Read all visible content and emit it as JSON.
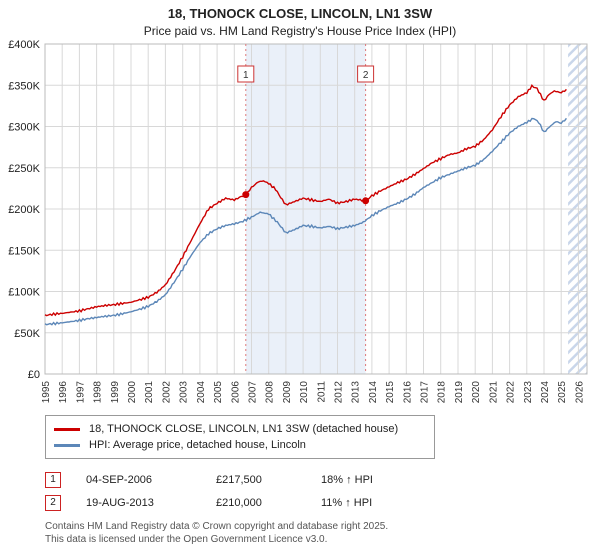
{
  "title": "18, THONOCK CLOSE, LINCOLN, LN1 3SW",
  "subtitle": "Price paid vs. HM Land Registry's House Price Index (HPI)",
  "chart_data": {
    "type": "line",
    "xlim": [
      1995,
      2026.5
    ],
    "ylim": [
      0,
      400000
    ],
    "grid": true,
    "x_ticks": [
      1995,
      1996,
      1997,
      1998,
      1999,
      2000,
      2001,
      2002,
      2003,
      2004,
      2005,
      2006,
      2007,
      2008,
      2009,
      2010,
      2011,
      2012,
      2013,
      2014,
      2015,
      2016,
      2017,
      2018,
      2019,
      2020,
      2021,
      2022,
      2023,
      2024,
      2025,
      2026
    ],
    "y_ticks": [
      {
        "value": 0,
        "label": "£0"
      },
      {
        "value": 50000,
        "label": "£50K"
      },
      {
        "value": 100000,
        "label": "£100K"
      },
      {
        "value": 150000,
        "label": "£150K"
      },
      {
        "value": 200000,
        "label": "£200K"
      },
      {
        "value": 250000,
        "label": "£250K"
      },
      {
        "value": 300000,
        "label": "£300K"
      },
      {
        "value": 350000,
        "label": "£350K"
      },
      {
        "value": 400000,
        "label": "£400K"
      }
    ],
    "shaded_region": {
      "from": 2006.67,
      "to": 2013.63,
      "color": "#eaf0f9"
    },
    "future_hatch_from": 2025.4,
    "marker_line_color": "#dd7777",
    "grid_color": "#d8d8d8",
    "series": [
      {
        "name": "18, THONOCK CLOSE, LINCOLN, LN1 3SW (detached house)",
        "color": "#cc0000",
        "points": [
          [
            1995,
            71000
          ],
          [
            1995.5,
            72500
          ],
          [
            1996,
            73500
          ],
          [
            1996.5,
            75000
          ],
          [
            1997,
            76500
          ],
          [
            1997.5,
            79000
          ],
          [
            1998,
            81500
          ],
          [
            1998.5,
            83000
          ],
          [
            1999,
            84000
          ],
          [
            1999.5,
            85500
          ],
          [
            2000,
            87000
          ],
          [
            2000.5,
            90000
          ],
          [
            2001,
            93000
          ],
          [
            2001.5,
            99000
          ],
          [
            2002,
            108000
          ],
          [
            2002.5,
            124000
          ],
          [
            2003,
            142000
          ],
          [
            2003.5,
            162000
          ],
          [
            2004,
            182000
          ],
          [
            2004.5,
            200000
          ],
          [
            2005,
            207000
          ],
          [
            2005.5,
            213000
          ],
          [
            2006,
            211000
          ],
          [
            2006.5,
            216000
          ],
          [
            2006.67,
            217500
          ],
          [
            2007,
            226000
          ],
          [
            2007.4,
            233000
          ],
          [
            2007.7,
            234000
          ],
          [
            2008,
            231000
          ],
          [
            2008.4,
            224000
          ],
          [
            2008.7,
            214000
          ],
          [
            2009,
            205000
          ],
          [
            2009.5,
            209000
          ],
          [
            2010,
            213000
          ],
          [
            2010.5,
            211000
          ],
          [
            2011,
            209000
          ],
          [
            2011.5,
            212000
          ],
          [
            2012,
            207000
          ],
          [
            2012.5,
            209000
          ],
          [
            2013,
            212000
          ],
          [
            2013.63,
            210000
          ],
          [
            2014,
            216000
          ],
          [
            2014.5,
            222000
          ],
          [
            2015,
            227000
          ],
          [
            2015.5,
            232000
          ],
          [
            2016,
            236000
          ],
          [
            2016.5,
            242000
          ],
          [
            2017,
            249000
          ],
          [
            2017.5,
            256000
          ],
          [
            2018,
            261000
          ],
          [
            2018.5,
            266000
          ],
          [
            2019,
            268000
          ],
          [
            2019.5,
            273000
          ],
          [
            2020,
            276000
          ],
          [
            2020.5,
            284000
          ],
          [
            2021,
            296000
          ],
          [
            2021.5,
            312000
          ],
          [
            2022,
            326000
          ],
          [
            2022.5,
            336000
          ],
          [
            2023,
            341000
          ],
          [
            2023.3,
            349000
          ],
          [
            2023.6,
            346000
          ],
          [
            2024,
            331000
          ],
          [
            2024.3,
            339000
          ],
          [
            2024.6,
            343000
          ],
          [
            2025,
            341000
          ],
          [
            2025.3,
            345000
          ]
        ]
      },
      {
        "name": "HPI: Average price, detached house, Lincoln",
        "color": "#5c87b8",
        "points": [
          [
            1995,
            60000
          ],
          [
            1995.5,
            61000
          ],
          [
            1996,
            62000
          ],
          [
            1996.5,
            63500
          ],
          [
            1997,
            65000
          ],
          [
            1997.5,
            67000
          ],
          [
            1998,
            68500
          ],
          [
            1998.5,
            70000
          ],
          [
            1999,
            71000
          ],
          [
            1999.5,
            73000
          ],
          [
            2000,
            75500
          ],
          [
            2000.5,
            78500
          ],
          [
            2001,
            82000
          ],
          [
            2001.5,
            88000
          ],
          [
            2002,
            96000
          ],
          [
            2002.5,
            111000
          ],
          [
            2003,
            127000
          ],
          [
            2003.5,
            144000
          ],
          [
            2004,
            159000
          ],
          [
            2004.5,
            170000
          ],
          [
            2005,
            176000
          ],
          [
            2005.5,
            180000
          ],
          [
            2006,
            182000
          ],
          [
            2006.5,
            185000
          ],
          [
            2007,
            190000
          ],
          [
            2007.5,
            196000
          ],
          [
            2008,
            194000
          ],
          [
            2008.5,
            184000
          ],
          [
            2009,
            171000
          ],
          [
            2009.5,
            175000
          ],
          [
            2010,
            180000
          ],
          [
            2010.5,
            179000
          ],
          [
            2011,
            177000
          ],
          [
            2011.5,
            179000
          ],
          [
            2012,
            176000
          ],
          [
            2012.5,
            178000
          ],
          [
            2013,
            180000
          ],
          [
            2013.5,
            184000
          ],
          [
            2014,
            192000
          ],
          [
            2014.5,
            198000
          ],
          [
            2015,
            203000
          ],
          [
            2015.5,
            207000
          ],
          [
            2016,
            212000
          ],
          [
            2016.5,
            218000
          ],
          [
            2017,
            226000
          ],
          [
            2017.5,
            232000
          ],
          [
            2018,
            238000
          ],
          [
            2018.5,
            242000
          ],
          [
            2019,
            246000
          ],
          [
            2019.5,
            250000
          ],
          [
            2020,
            253000
          ],
          [
            2020.5,
            260000
          ],
          [
            2021,
            270000
          ],
          [
            2021.5,
            281000
          ],
          [
            2022,
            292000
          ],
          [
            2022.5,
            300000
          ],
          [
            2023,
            305000
          ],
          [
            2023.4,
            310000
          ],
          [
            2023.7,
            305000
          ],
          [
            2024,
            293000
          ],
          [
            2024.4,
            301000
          ],
          [
            2024.7,
            306000
          ],
          [
            2025,
            304000
          ],
          [
            2025.3,
            310000
          ]
        ]
      }
    ],
    "sale_markers": [
      {
        "label": "1",
        "x": 2006.67,
        "price": 217500
      },
      {
        "label": "2",
        "x": 2013.63,
        "price": 210000
      }
    ]
  },
  "legend": [
    {
      "label": "18, THONOCK CLOSE, LINCOLN, LN1 3SW (detached house)",
      "color": "#cc0000"
    },
    {
      "label": "HPI: Average price, detached house, Lincoln",
      "color": "#5c87b8"
    }
  ],
  "transactions": [
    {
      "num": "1",
      "date": "04-SEP-2006",
      "price": "£217,500",
      "hpi": "18% ↑ HPI"
    },
    {
      "num": "2",
      "date": "19-AUG-2013",
      "price": "£210,000",
      "hpi": "11% ↑ HPI"
    }
  ],
  "footer": {
    "line1": "Contains HM Land Registry data © Crown copyright and database right 2025.",
    "line2": "This data is licensed under the Open Government Licence v3.0."
  }
}
